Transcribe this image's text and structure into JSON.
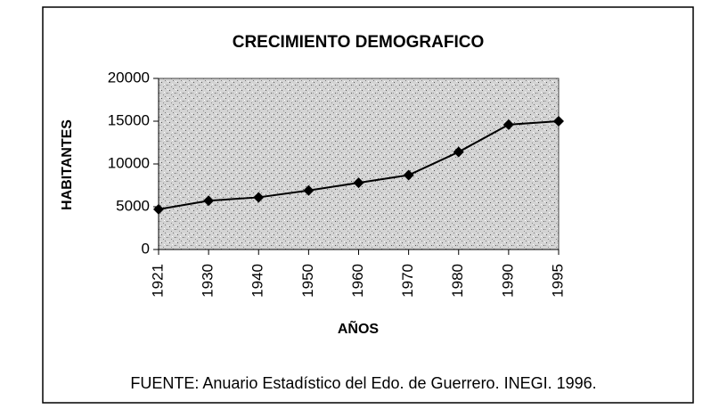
{
  "chart_data": {
    "type": "line",
    "title": "CRECIMIENTO DEMOGRAFICO",
    "x_label": "AÑOS",
    "y_label": "HABITANTES",
    "categories": [
      "1921",
      "1930",
      "1940",
      "1950",
      "1960",
      "1970",
      "1980",
      "1990",
      "1995"
    ],
    "values": [
      4700,
      5700,
      6100,
      6900,
      7800,
      8700,
      11400,
      14600,
      15000
    ],
    "color": "#000000",
    "ylim": [
      0,
      20000
    ],
    "yticks": [
      0,
      5000,
      10000,
      15000,
      20000
    ],
    "source": "FUENTE: Anuario Estadístico del Edo. de Guerrero. INEGI. 1996."
  }
}
